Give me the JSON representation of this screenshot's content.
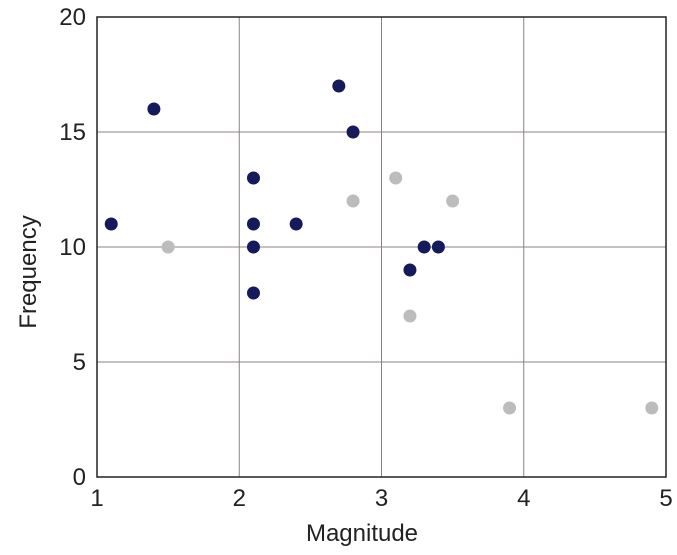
{
  "chart_data": {
    "type": "scatter",
    "title": "",
    "xlabel": "Magnitude",
    "ylabel": "Frequency",
    "xlim": [
      1,
      5
    ],
    "ylim": [
      0,
      20
    ],
    "x_ticks": [
      1,
      2,
      3,
      4,
      5
    ],
    "y_ticks": [
      0,
      5,
      10,
      15,
      20
    ],
    "grid": true,
    "legend": "none",
    "series": [
      {
        "color": "#141a5c",
        "points": [
          {
            "x": 1.1,
            "y": 11
          },
          {
            "x": 1.4,
            "y": 16
          },
          {
            "x": 2.1,
            "y": 13
          },
          {
            "x": 2.1,
            "y": 11
          },
          {
            "x": 2.1,
            "y": 10
          },
          {
            "x": 2.1,
            "y": 8
          },
          {
            "x": 2.4,
            "y": 11
          },
          {
            "x": 2.7,
            "y": 17
          },
          {
            "x": 2.8,
            "y": 15
          },
          {
            "x": 3.2,
            "y": 9
          },
          {
            "x": 3.3,
            "y": 10
          },
          {
            "x": 3.4,
            "y": 10
          }
        ]
      },
      {
        "color": "#bcbcbc",
        "points": [
          {
            "x": 1.5,
            "y": 10
          },
          {
            "x": 2.8,
            "y": 12
          },
          {
            "x": 3.1,
            "y": 13
          },
          {
            "x": 3.5,
            "y": 12
          },
          {
            "x": 3.2,
            "y": 7
          },
          {
            "x": 3.9,
            "y": 3
          },
          {
            "x": 4.9,
            "y": 3
          }
        ]
      }
    ]
  }
}
